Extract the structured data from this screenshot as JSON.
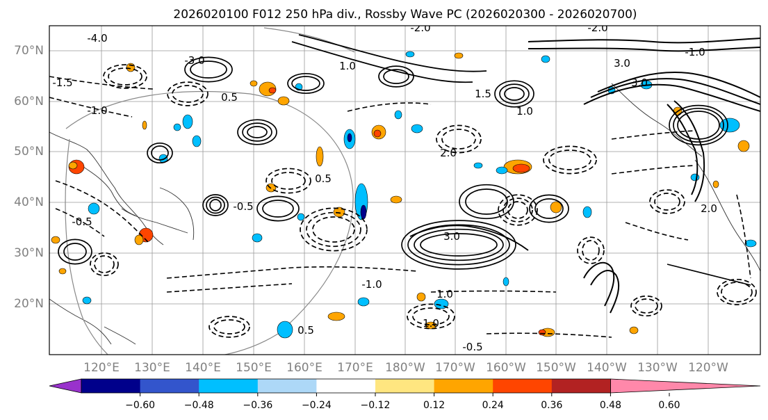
{
  "title": "2026020100 F012 250 hPa div., Rossby Wave PC (2026020300 - 2026020700)",
  "map": {
    "lat_labels": [
      "70°N",
      "60°N",
      "50°N",
      "40°N",
      "30°N",
      "20°N"
    ],
    "lon_labels": [
      "120°E",
      "130°E",
      "140°E",
      "150°E",
      "160°E",
      "170°E",
      "180°W",
      "170°W",
      "160°W",
      "150°W",
      "140°W",
      "130°W",
      "120°W"
    ],
    "contour_labels": [
      "-4.0",
      "-3.0",
      "-1.5",
      "-1.0",
      "-0.5",
      "-0.5",
      "0.5",
      "0.5",
      "1.0",
      "1.0",
      "1.5",
      "2.0",
      "3.0",
      "3.0",
      "-2.0",
      "-1.0",
      "-0.5",
      "0.5",
      "1.0",
      "-1.0",
      "3.0",
      "-2.0",
      "1.0",
      "2.0"
    ]
  },
  "colorbar": {
    "ticks": [
      "−0.60",
      "−0.48",
      "−0.36",
      "−0.24",
      "−0.12",
      "0.12",
      "0.24",
      "0.36",
      "0.48",
      "0.60"
    ],
    "colors": [
      "#9932cc",
      "#00008b",
      "#3355cc",
      "#00bfff",
      "#add8f7",
      "#ffffff",
      "#ffe680",
      "#ffa500",
      "#ff4500",
      "#b22222",
      "#ff88aa"
    ]
  },
  "chart_data": {
    "type": "heatmap",
    "title": "2026020100 F012 250 hPa div., Rossby Wave PC (2026020300 - 2026020700)",
    "variable": "250 hPa divergence (shaded) with Rossby wave PC contours",
    "lat_range": [
      10,
      75
    ],
    "lon_range": [
      110,
      250
    ],
    "color_levels": [
      -0.6,
      -0.48,
      -0.36,
      -0.24,
      -0.12,
      0.12,
      0.24,
      0.36,
      0.48,
      0.6
    ],
    "contour_interval_note": "solid positive, dashed negative"
  }
}
